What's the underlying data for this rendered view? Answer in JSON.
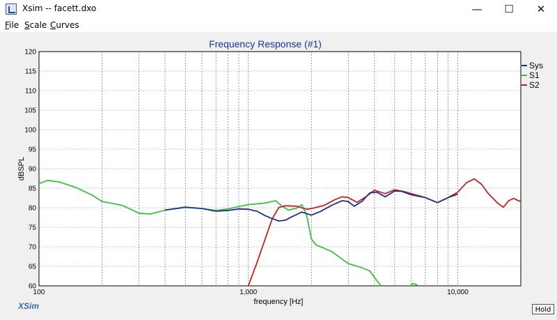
{
  "window": {
    "title": "Xsim -- facett.dxo",
    "minimize_glyph": "—",
    "maximize_glyph": "☐",
    "close_glyph": "✕"
  },
  "menu": [
    {
      "label": "File",
      "key": "F",
      "rest": "ile"
    },
    {
      "label": "Scale",
      "key": "S",
      "rest": "cale"
    },
    {
      "label": "Curves",
      "key": "C",
      "rest": "urves"
    }
  ],
  "watermark": "XSim",
  "hold_label": "Hold",
  "colors": {
    "sys": "#1f2f8f",
    "s1": "#3cc040",
    "s2": "#c42222",
    "title": "#2030a0",
    "watermark": "#3a6aa8"
  },
  "chart_data": {
    "type": "line",
    "title": "Frequency Response (#1)",
    "xlabel": "frequency [Hz]",
    "ylabel": "dBSPL",
    "x_scale": "log",
    "xlim": [
      100,
      20000
    ],
    "ylim": [
      60,
      120
    ],
    "x_ticks": [
      {
        "value": 100,
        "label": "100"
      },
      {
        "value": 1000,
        "label": "1,000"
      },
      {
        "value": 10000,
        "label": "10,000"
      }
    ],
    "y_ticks": [
      {
        "value": 60,
        "label": "60"
      },
      {
        "value": 65,
        "label": "65"
      },
      {
        "value": 70,
        "label": "70"
      },
      {
        "value": 75,
        "label": "75"
      },
      {
        "value": 80,
        "label": "80"
      },
      {
        "value": 85,
        "label": "85"
      },
      {
        "value": 90,
        "label": "90"
      },
      {
        "value": 95,
        "label": "95"
      },
      {
        "value": 100,
        "label": "100"
      },
      {
        "value": 105,
        "label": "105"
      },
      {
        "value": 110,
        "label": "110"
      },
      {
        "value": 115,
        "label": "115"
      },
      {
        "value": 120,
        "label": "120"
      }
    ],
    "grid": true,
    "legend_position": "right",
    "series": [
      {
        "name": "Sys",
        "color": "#1f2f8f",
        "points": [
          [
            400,
            79.4
          ],
          [
            500,
            80.1
          ],
          [
            600,
            79.8
          ],
          [
            700,
            79.1
          ],
          [
            800,
            79.3
          ],
          [
            900,
            79.7
          ],
          [
            1000,
            79.6
          ],
          [
            1100,
            79.1
          ],
          [
            1200,
            78.0
          ],
          [
            1300,
            77.2
          ],
          [
            1400,
            76.6
          ],
          [
            1500,
            76.8
          ],
          [
            1600,
            77.6
          ],
          [
            1800,
            78.9
          ],
          [
            2000,
            78.1
          ],
          [
            2200,
            79.0
          ],
          [
            2500,
            80.6
          ],
          [
            2800,
            81.8
          ],
          [
            3000,
            81.6
          ],
          [
            3200,
            80.4
          ],
          [
            3500,
            81.7
          ],
          [
            3800,
            83.8
          ],
          [
            4100,
            84.0
          ],
          [
            4500,
            82.8
          ],
          [
            5000,
            84.3
          ],
          [
            5400,
            84.2
          ],
          [
            6000,
            83.3
          ],
          [
            7000,
            82.6
          ],
          [
            8000,
            81.3
          ],
          [
            9000,
            82.6
          ],
          [
            10000,
            83.5
          ]
        ]
      },
      {
        "name": "S1",
        "color": "#3cc040",
        "points": [
          [
            100,
            86.2
          ],
          [
            110,
            87.0
          ],
          [
            125,
            86.6
          ],
          [
            150,
            85.2
          ],
          [
            180,
            83.2
          ],
          [
            200,
            81.6
          ],
          [
            250,
            80.6
          ],
          [
            300,
            78.6
          ],
          [
            340,
            78.4
          ],
          [
            400,
            79.4
          ],
          [
            500,
            80.2
          ],
          [
            600,
            79.8
          ],
          [
            700,
            79.3
          ],
          [
            800,
            79.7
          ],
          [
            900,
            80.3
          ],
          [
            1000,
            80.8
          ],
          [
            1200,
            81.2
          ],
          [
            1350,
            81.8
          ],
          [
            1450,
            80.4
          ],
          [
            1550,
            79.4
          ],
          [
            1700,
            79.9
          ],
          [
            1800,
            80.8
          ],
          [
            1900,
            78.0
          ],
          [
            2000,
            72.0
          ],
          [
            2100,
            70.5
          ],
          [
            2500,
            68.8
          ],
          [
            3000,
            65.7
          ],
          [
            3500,
            64.6
          ],
          [
            3800,
            63.8
          ],
          [
            4100,
            61.4
          ],
          [
            4300,
            60.0
          ]
        ]
      },
      {
        "name": "S2",
        "color": "#c42222",
        "points": [
          [
            1000,
            60.0
          ],
          [
            1100,
            66.0
          ],
          [
            1200,
            71.8
          ],
          [
            1300,
            77.2
          ],
          [
            1400,
            80.1
          ],
          [
            1500,
            80.5
          ],
          [
            1700,
            80.4
          ],
          [
            1900,
            79.6
          ],
          [
            2000,
            79.8
          ],
          [
            2300,
            80.6
          ],
          [
            2600,
            82.1
          ],
          [
            2800,
            82.8
          ],
          [
            3000,
            82.6
          ],
          [
            3300,
            81.4
          ],
          [
            3600,
            82.6
          ],
          [
            4000,
            84.5
          ],
          [
            4500,
            83.6
          ],
          [
            5000,
            84.6
          ],
          [
            5500,
            84.2
          ],
          [
            6000,
            83.6
          ],
          [
            7000,
            82.6
          ],
          [
            8000,
            81.3
          ],
          [
            9000,
            82.6
          ],
          [
            10000,
            84.0
          ],
          [
            11000,
            86.4
          ],
          [
            12000,
            87.4
          ],
          [
            13000,
            86.0
          ],
          [
            14000,
            83.6
          ],
          [
            15500,
            81.2
          ],
          [
            16500,
            80.1
          ],
          [
            17500,
            81.8
          ],
          [
            18500,
            82.4
          ],
          [
            19500,
            81.8
          ],
          [
            20000,
            81.6
          ]
        ]
      }
    ],
    "extra_segments": [
      {
        "series": "S1",
        "points": [
          [
            5950,
            60.0
          ],
          [
            6100,
            60.6
          ],
          [
            6300,
            60.4
          ],
          [
            6500,
            60.0
          ]
        ]
      }
    ]
  }
}
